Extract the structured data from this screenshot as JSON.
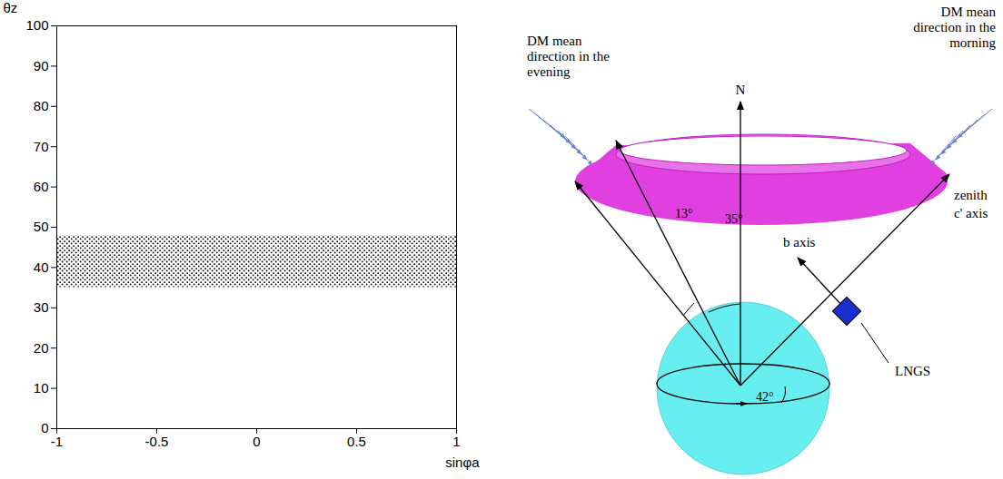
{
  "chart_data": {
    "type": "band",
    "marker": "dot",
    "color": "#000000",
    "x_label": "sinφa",
    "y_label": "θz",
    "x": [
      -1,
      1
    ],
    "low": [
      35,
      35
    ],
    "high": [
      48,
      48
    ],
    "xlim": [
      -1,
      1
    ],
    "xticks": [
      -1,
      -0.5,
      0,
      0.5,
      1
    ],
    "ylim": [
      0,
      100
    ],
    "yticks": [
      0,
      10,
      20,
      30,
      40,
      50,
      60,
      70,
      80,
      90,
      100
    ]
  },
  "diagram": {
    "evening_label": "DM mean direction in the evening",
    "morning_label": "DM mean direction in the morning",
    "north": "N",
    "zenith": "zenith",
    "c_axis": "c' axis",
    "b_axis": "b axis",
    "site": "LNGS",
    "angles": {
      "cone_width": "13°",
      "cone_half": "35°",
      "latitude": "42°"
    }
  }
}
